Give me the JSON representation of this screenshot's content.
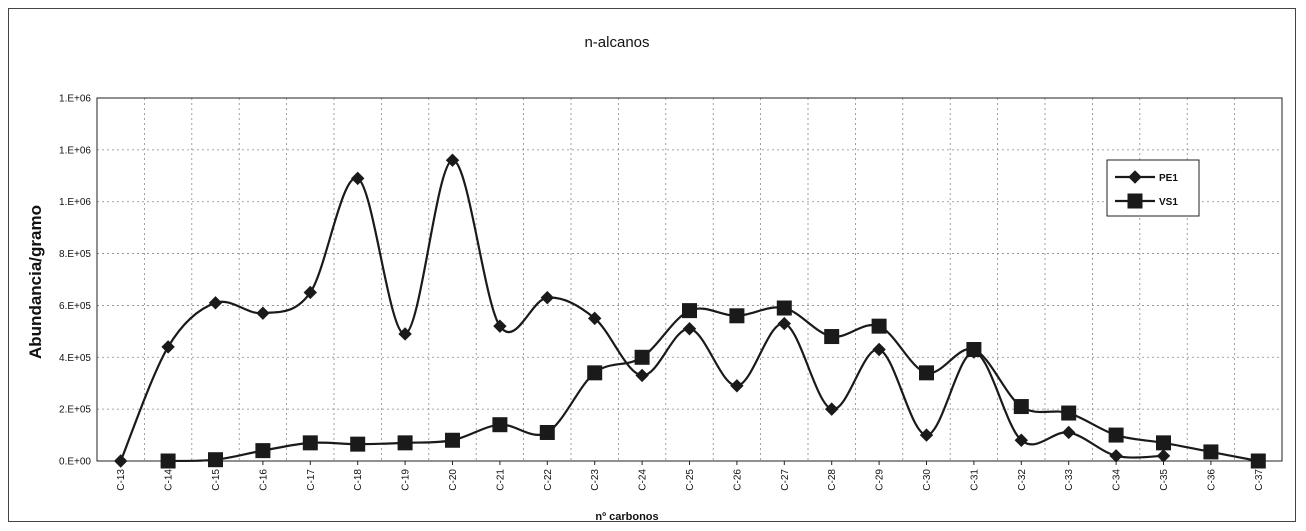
{
  "chart_data": {
    "type": "line",
    "title": "n-alcanos",
    "xlabel": "nº carbonos",
    "ylabel": "Abundancia/gramo",
    "categories": [
      "C-13",
      "C-14",
      "C-15",
      "C-16",
      "C-17",
      "C-18",
      "C-19",
      "C-20",
      "C-21",
      "C-22",
      "C-23",
      "C-24",
      "C-25",
      "C-26",
      "C-27",
      "C-28",
      "C-29",
      "C-30",
      "C-31",
      "C-32",
      "C-33",
      "C-34",
      "C-35",
      "C-36",
      "C-37"
    ],
    "yticks": [
      0,
      200000,
      400000,
      600000,
      800000,
      1000000,
      1200000,
      1400000
    ],
    "ytick_labels": [
      "0.E+00",
      "2.E+05",
      "4.E+05",
      "6.E+05",
      "8.E+05",
      "1.E+06",
      "1.E+06",
      "1.E+06"
    ],
    "ylim": [
      0,
      1400000
    ],
    "grid": true,
    "legend_position": "right",
    "series": [
      {
        "name": "PE1",
        "marker": "diamond",
        "values": [
          0,
          440000,
          610000,
          570000,
          650000,
          1090000,
          490000,
          1160000,
          520000,
          630000,
          550000,
          330000,
          510000,
          290000,
          530000,
          200000,
          430000,
          100000,
          420000,
          80000,
          110000,
          20000,
          20000,
          null,
          null
        ]
      },
      {
        "name": "VS1",
        "marker": "square",
        "values": [
          null,
          0,
          5000,
          40000,
          70000,
          65000,
          70000,
          80000,
          140000,
          110000,
          340000,
          400000,
          580000,
          560000,
          590000,
          480000,
          520000,
          340000,
          430000,
          210000,
          185000,
          100000,
          70000,
          35000,
          0
        ]
      }
    ]
  }
}
